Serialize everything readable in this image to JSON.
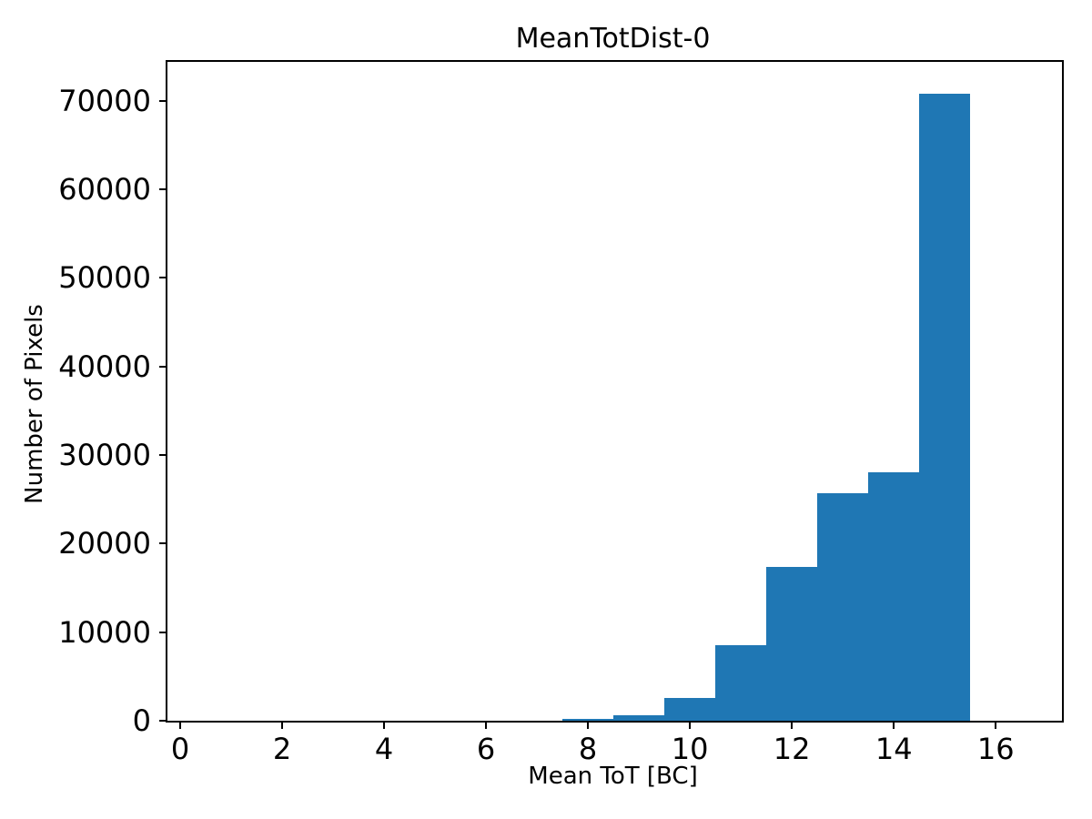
{
  "chart_data": {
    "type": "bar",
    "subtype": "histogram",
    "title": "MeanTotDist-0",
    "xlabel": "Mean ToT [BC]",
    "ylabel": "Number of Pixels",
    "bin_edges": [
      7.5,
      8.5,
      9.5,
      10.5,
      11.5,
      12.5,
      13.5,
      14.5,
      15.5
    ],
    "counts": [
      200,
      650,
      2600,
      8500,
      17400,
      25700,
      28100,
      70800
    ],
    "xticks": [
      0,
      2,
      4,
      6,
      8,
      10,
      12,
      14,
      16
    ],
    "yticks": [
      0,
      10000,
      20000,
      30000,
      40000,
      50000,
      60000,
      70000
    ],
    "xlim": [
      -0.25,
      17.3
    ],
    "ylim": [
      0,
      74400
    ],
    "bar_color": "#1f77b4",
    "axis_color": "#000000",
    "background_color": "#ffffff",
    "grid": false,
    "legend": null
  }
}
